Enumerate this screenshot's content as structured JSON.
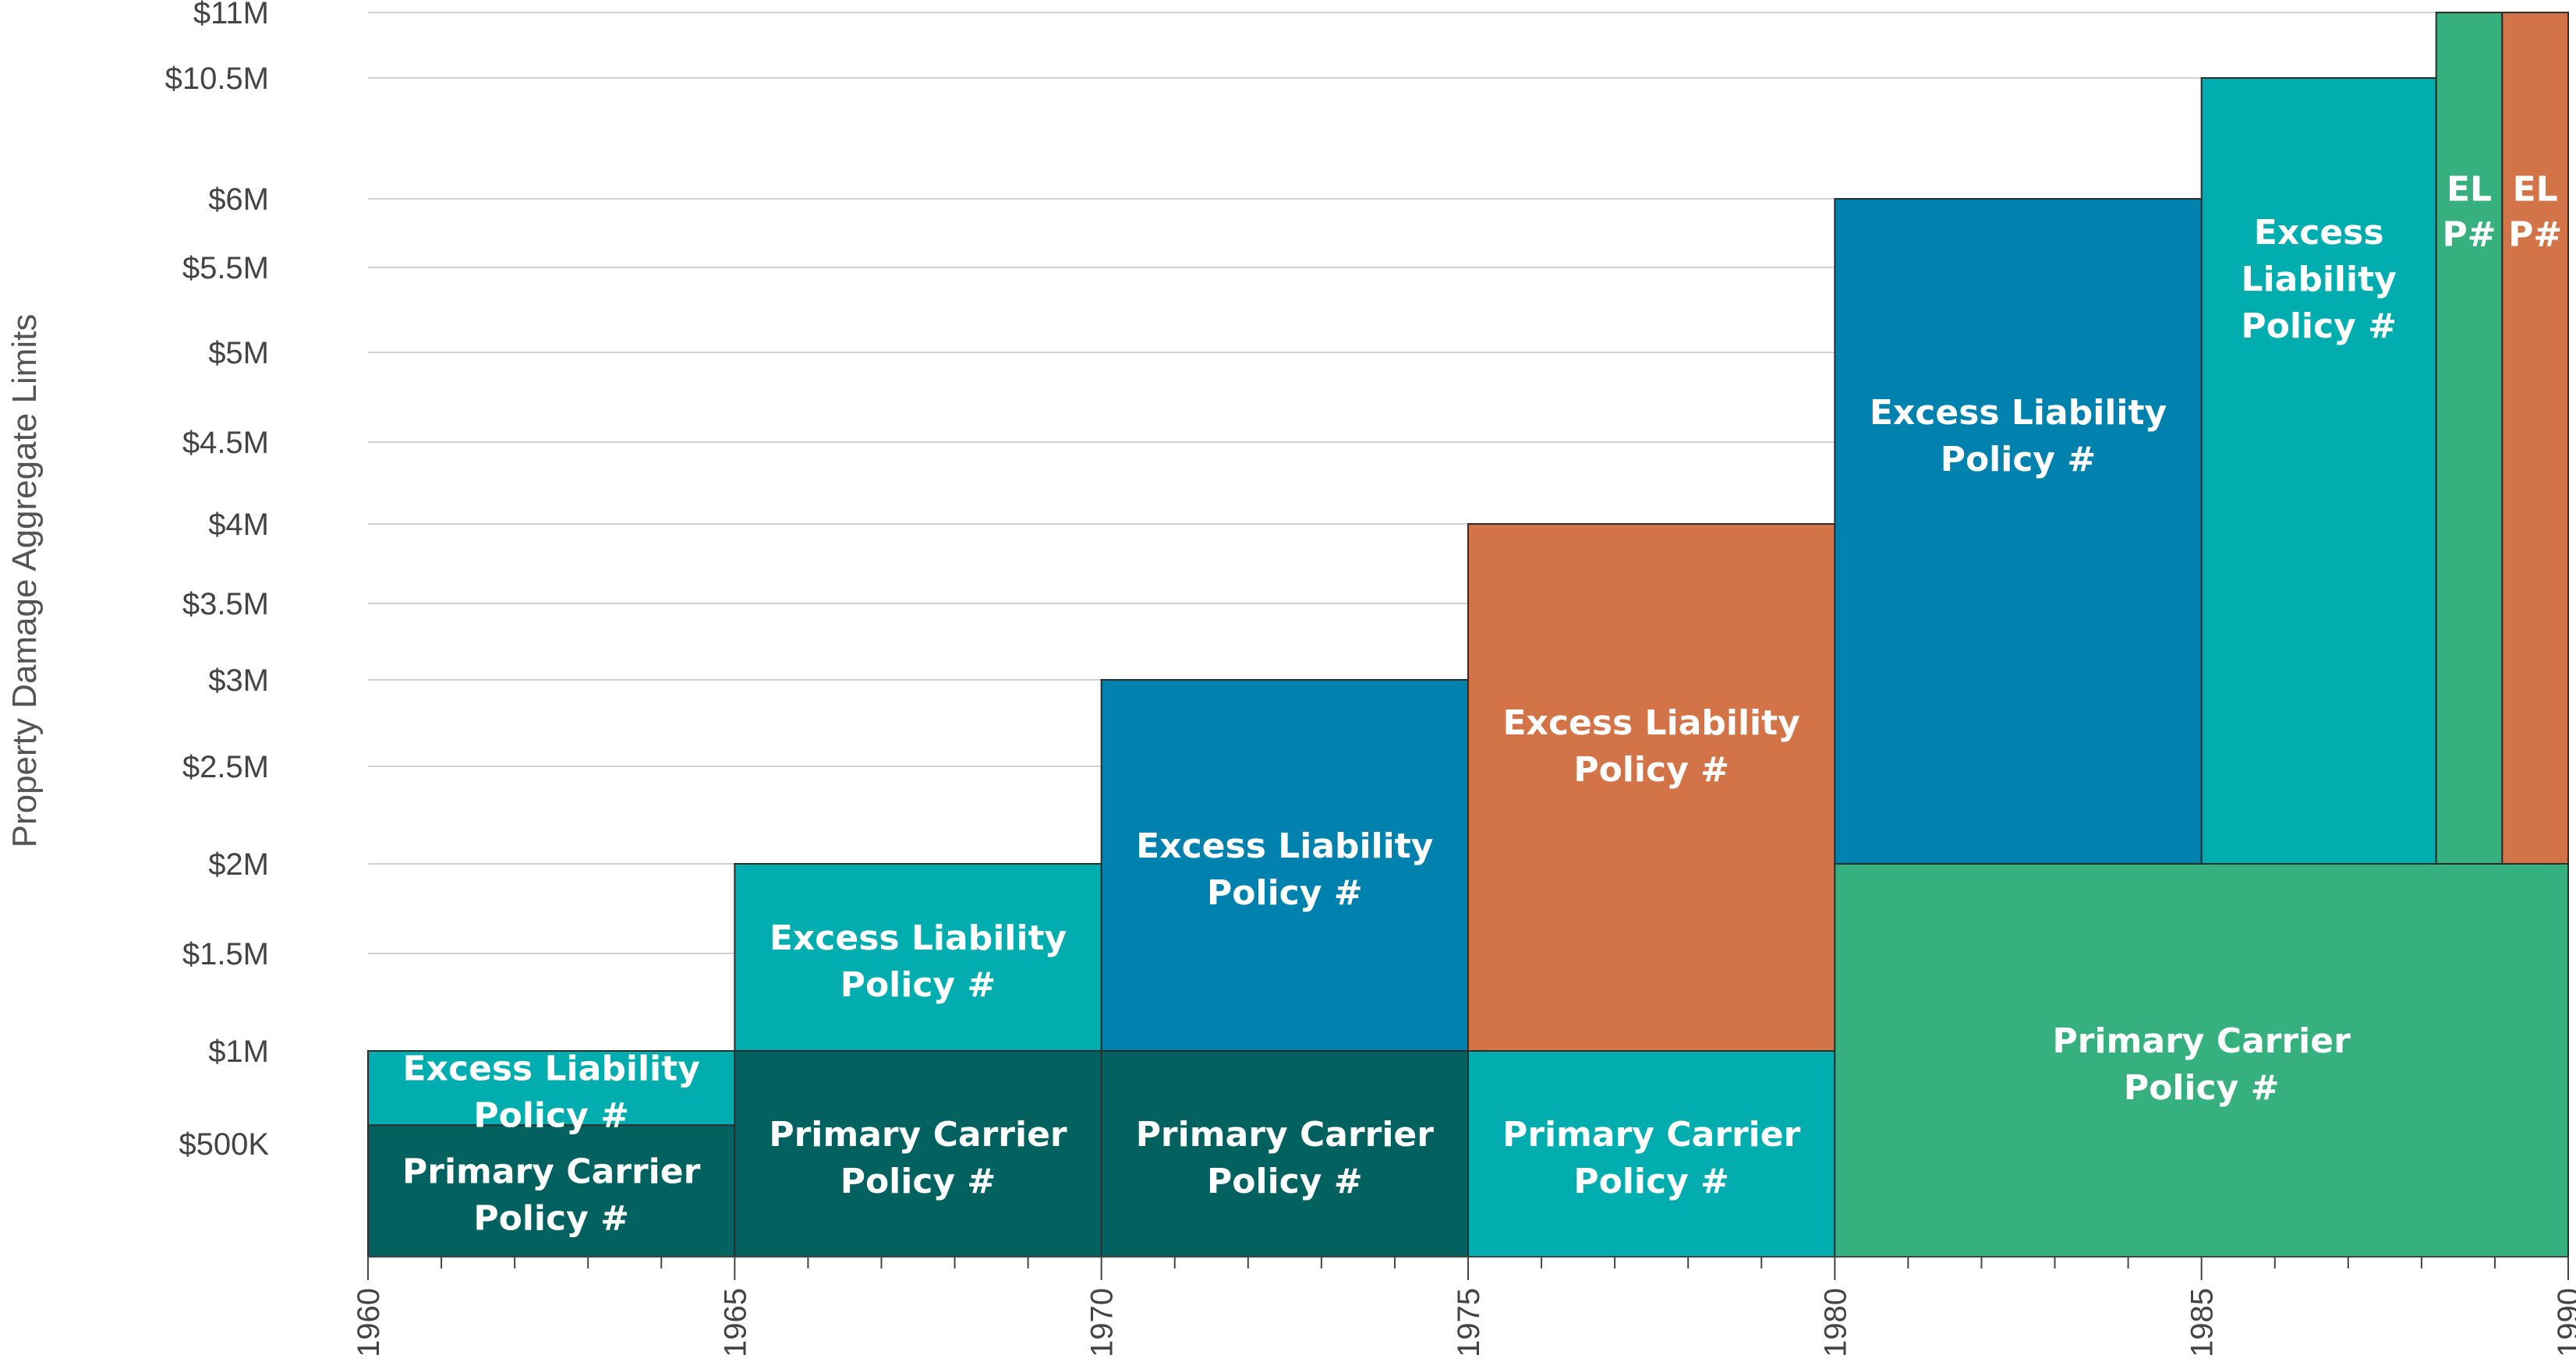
{
  "chart_data": {
    "type": "stacked-interval-blocks",
    "ylabel": "Property Damage Aggregate Limits",
    "xlabel": "",
    "x_ticks": [
      "1960",
      "1965",
      "1970",
      "1975",
      "1980",
      "1985",
      "1990"
    ],
    "xlim": [
      1960,
      1990
    ],
    "y_tick_labels": [
      "$500K",
      "$1M",
      "$1.5M",
      "$2M",
      "$2.5M",
      "$3M",
      "$3.5M",
      "$4M",
      "$4.5M",
      "$5M",
      "$5.5M",
      "$6M",
      "$10.5M",
      "$11M"
    ],
    "y_tick_values": [
      0.5,
      1,
      1.5,
      2,
      2.5,
      3,
      3.5,
      4,
      4.5,
      5,
      5.5,
      6,
      10.5,
      11
    ],
    "y_units": "millions of dollars",
    "colors": {
      "dark_teal": "#03615f",
      "teal": "#02adb0",
      "blue": "#0081ae",
      "orange": "#d37448",
      "green": "#36b07f"
    },
    "blocks": [
      {
        "name": "primary-1960",
        "x0": 1960,
        "x1": 1965,
        "y0": 0,
        "y1": 0.6,
        "color": "#03615f",
        "lines": [
          "Primary Carrier",
          "Policy #"
        ]
      },
      {
        "name": "excess-1960",
        "x0": 1960,
        "x1": 1965,
        "y0": 0.6,
        "y1": 1,
        "color": "#02adb0",
        "lines": [
          "Excess Liability",
          "Policy #"
        ]
      },
      {
        "name": "primary-1965",
        "x0": 1965,
        "x1": 1970,
        "y0": 0,
        "y1": 1,
        "color": "#03615f",
        "lines": [
          "Primary Carrier",
          "Policy #"
        ]
      },
      {
        "name": "excess-1965",
        "x0": 1965,
        "x1": 1970,
        "y0": 1,
        "y1": 2,
        "color": "#02adb0",
        "lines": [
          "Excess Liability",
          "Policy #"
        ]
      },
      {
        "name": "primary-1970",
        "x0": 1970,
        "x1": 1975,
        "y0": 0,
        "y1": 1,
        "color": "#03615f",
        "lines": [
          "Primary Carrier",
          "Policy #"
        ]
      },
      {
        "name": "excess-1970",
        "x0": 1970,
        "x1": 1975,
        "y0": 1,
        "y1": 3,
        "color": "#0081ae",
        "lines": [
          "Excess Liability",
          "Policy #"
        ]
      },
      {
        "name": "primary-1975",
        "x0": 1975,
        "x1": 1980,
        "y0": 0,
        "y1": 1,
        "color": "#02adb0",
        "lines": [
          "Primary Carrier",
          "Policy #"
        ]
      },
      {
        "name": "excess-1975",
        "x0": 1975,
        "x1": 1980,
        "y0": 1,
        "y1": 4,
        "color": "#d37448",
        "lines": [
          "Excess Liability",
          "Policy #"
        ]
      },
      {
        "name": "primary-1980",
        "x0": 1980,
        "x1": 1990,
        "y0": 0,
        "y1": 2,
        "color": "#36b07f",
        "lines": [
          "Primary Carrier",
          "Policy #"
        ]
      },
      {
        "name": "excess-1980",
        "x0": 1980,
        "x1": 1985,
        "y0": 2,
        "y1": 6,
        "color": "#0081ae",
        "lines": [
          "Excess Liability",
          "Policy #"
        ]
      },
      {
        "name": "excess-1985",
        "x0": 1985,
        "x1": 1988.2,
        "y0": 2,
        "y1": 10.5,
        "color": "#02adb0",
        "lines": [
          "Excess",
          "Liability",
          "Policy #"
        ]
      },
      {
        "name": "el-1988",
        "x0": 1988.2,
        "x1": 1989.1,
        "y0": 2,
        "y1": 11,
        "color": "#36b07f",
        "lines": [
          "EL",
          "P#"
        ]
      },
      {
        "name": "el-1989",
        "x0": 1989.1,
        "x1": 1990,
        "y0": 2,
        "y1": 11,
        "color": "#d37448",
        "lines": [
          "EL",
          "P#"
        ]
      }
    ]
  }
}
